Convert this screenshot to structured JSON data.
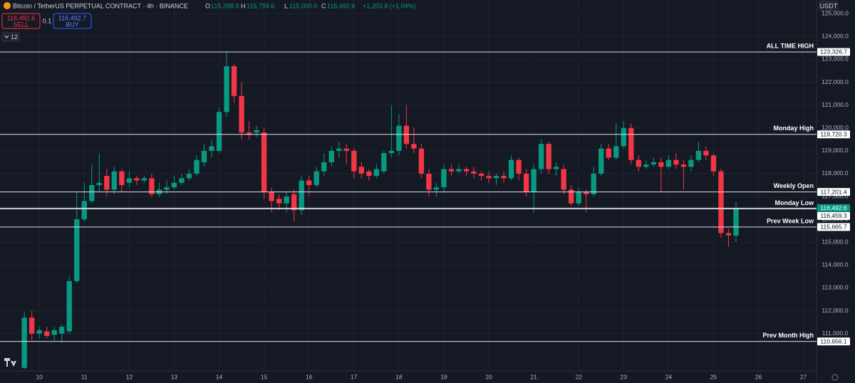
{
  "header": {
    "title": "Bitcoin / TetherUS PERPETUAL CONTRACT · 4h · BINANCE",
    "ohlc": [
      {
        "key": "O",
        "value": "115,288.9"
      },
      {
        "key": "H",
        "value": "116,759.6"
      },
      {
        "key": "L",
        "value": "115,000.0"
      },
      {
        "key": "C",
        "value": "116,492.6"
      }
    ],
    "change": "+1,203.8 (+1.04%)",
    "sell_price": "116,492.6",
    "sell": "SELL",
    "quantity": "0.1",
    "buy_price": "116,492.7",
    "buy": "BUY",
    "indicators": "12",
    "currency": "USDT"
  },
  "chart_data": {
    "type": "candlestick",
    "up_color": "#089981",
    "down_color": "#f23645",
    "grid": true,
    "x": [
      -8,
      -4,
      0,
      4,
      8,
      12,
      16,
      20,
      24,
      28,
      32,
      36,
      40,
      44,
      48,
      52,
      56,
      60,
      64,
      68,
      72,
      76,
      80,
      84,
      88,
      92,
      96,
      100,
      104,
      108,
      112,
      116,
      120,
      124,
      128,
      132,
      136,
      140,
      144,
      148,
      152,
      156,
      160,
      164,
      168,
      172,
      176,
      180,
      184,
      188,
      192,
      196,
      200,
      204,
      208,
      212,
      216,
      220,
      224,
      228,
      232,
      236,
      240,
      244,
      248,
      252,
      256,
      260,
      264,
      268,
      272,
      276,
      280,
      284,
      288,
      292,
      296,
      300,
      304,
      308,
      312,
      316,
      320,
      324,
      328,
      332,
      336,
      340,
      344,
      348,
      352,
      356,
      360,
      364,
      368,
      372
    ],
    "open": [
      109500,
      111700,
      111000,
      111100,
      110950,
      111000,
      111100,
      113300,
      116000,
      116800,
      117500,
      117900,
      117300,
      118100,
      117600,
      117800,
      117700,
      117800,
      117100,
      117300,
      117400,
      117600,
      117800,
      118000,
      118500,
      119000,
      119000,
      120700,
      122700,
      121400,
      119800,
      119800,
      119800,
      117200,
      116900,
      116700,
      117100,
      116400,
      117700,
      117500,
      118100,
      118500,
      119000,
      119100,
      119000,
      118300,
      118100,
      117900,
      118100,
      118900,
      119000,
      120100,
      119300,
      119100,
      118000,
      117300,
      117400,
      118200,
      118100,
      118200,
      118100,
      118000,
      117900,
      117800,
      117900,
      117800,
      118600,
      118000,
      117200,
      118200,
      119300,
      118200,
      118200,
      117300,
      116700,
      117200,
      117100,
      118000,
      119100,
      118700,
      119200,
      120000,
      118600,
      118300,
      118400,
      118500,
      118300,
      118600,
      118400,
      118300,
      118600,
      119000,
      118800,
      118100,
      115400,
      115288.9
    ],
    "high": [
      111950,
      112000,
      111300,
      111300,
      111300,
      111400,
      113500,
      117200,
      117600,
      118400,
      118900,
      118200,
      118300,
      118200,
      118100,
      117900,
      117900,
      118000,
      117600,
      117700,
      117900,
      118000,
      118200,
      118800,
      119300,
      119500,
      120900,
      123300,
      122800,
      122000,
      120300,
      120100,
      120000,
      117400,
      117100,
      117200,
      117300,
      117900,
      117900,
      118300,
      118900,
      119200,
      119400,
      119300,
      119100,
      118500,
      118200,
      118400,
      119000,
      121000,
      120600,
      121000,
      120000,
      119300,
      118200,
      117600,
      118400,
      118400,
      118400,
      118300,
      118300,
      118100,
      118100,
      118000,
      118100,
      118800,
      118700,
      118200,
      118400,
      119500,
      119400,
      118500,
      118400,
      117500,
      117400,
      117300,
      118300,
      119300,
      119300,
      120200,
      120300,
      120200,
      118800,
      118600,
      118700,
      118700,
      118800,
      118900,
      118600,
      118800,
      119400,
      119200,
      118900,
      118200,
      115600,
      116759.6
    ],
    "low": [
      109450,
      110700,
      110800,
      110800,
      110700,
      110600,
      111000,
      113200,
      115900,
      116700,
      117200,
      117000,
      117100,
      117200,
      117400,
      117500,
      117600,
      117000,
      117000,
      117100,
      117300,
      117500,
      117700,
      117900,
      118300,
      118700,
      118900,
      120500,
      121100,
      119500,
      119500,
      119600,
      116900,
      116300,
      116400,
      116300,
      115900,
      116200,
      117000,
      117400,
      117900,
      118300,
      118700,
      118400,
      117800,
      117800,
      117700,
      117800,
      118000,
      118700,
      118800,
      119100,
      118900,
      117800,
      117000,
      117000,
      117200,
      117900,
      118000,
      117900,
      117800,
      117700,
      117600,
      117500,
      117600,
      117700,
      117700,
      117000,
      116300,
      118000,
      118000,
      117900,
      117100,
      116600,
      116600,
      116300,
      117000,
      117900,
      118600,
      118600,
      119100,
      118400,
      118100,
      118200,
      118300,
      117200,
      118200,
      118200,
      117300,
      118100,
      118500,
      118600,
      117900,
      115200,
      114800,
      115000
    ],
    "close": [
      111700,
      111000,
      111150,
      110900,
      111150,
      111300,
      113300,
      116000,
      116800,
      117500,
      117600,
      117300,
      118100,
      117500,
      117800,
      117700,
      117800,
      117100,
      117300,
      117400,
      117600,
      117800,
      118000,
      118600,
      119000,
      119200,
      120700,
      122700,
      121400,
      119800,
      119700,
      119900,
      117200,
      116800,
      116700,
      117000,
      116400,
      117700,
      117500,
      118100,
      118500,
      119000,
      119100,
      119000,
      118100,
      118000,
      117900,
      118200,
      118900,
      119000,
      120100,
      119300,
      119100,
      118000,
      117300,
      117400,
      118200,
      118100,
      118200,
      118100,
      118000,
      117900,
      117800,
      117900,
      117800,
      118600,
      118000,
      117200,
      118200,
      119300,
      118200,
      118300,
      117300,
      116700,
      117200,
      117100,
      118000,
      119100,
      118700,
      119200,
      120000,
      118600,
      118300,
      118400,
      118500,
      118300,
      118600,
      118400,
      118300,
      118600,
      119000,
      118800,
      118100,
      115400,
      115300,
      116492.6
    ],
    "xlim": [
      -21,
      415
    ],
    "xticks": [
      {
        "value": 0,
        "label": "10"
      },
      {
        "value": 24,
        "label": "11"
      },
      {
        "value": 48,
        "label": "12"
      },
      {
        "value": 72,
        "label": "13"
      },
      {
        "value": 96,
        "label": "14"
      },
      {
        "value": 120,
        "label": "15"
      },
      {
        "value": 144,
        "label": "16"
      },
      {
        "value": 168,
        "label": "17"
      },
      {
        "value": 192,
        "label": "18"
      },
      {
        "value": 216,
        "label": "19"
      },
      {
        "value": 240,
        "label": "20"
      },
      {
        "value": 264,
        "label": "21"
      },
      {
        "value": 288,
        "label": "22"
      },
      {
        "value": 312,
        "label": "23"
      },
      {
        "value": 336,
        "label": "24"
      },
      {
        "value": 360,
        "label": "25"
      },
      {
        "value": 384,
        "label": "26"
      },
      {
        "value": 408,
        "label": "27"
      }
    ],
    "ylim": [
      109400,
      125600
    ],
    "yticks": [
      {
        "value": 111000,
        "label": "111,000.0"
      },
      {
        "value": 112000,
        "label": "112,000.0"
      },
      {
        "value": 113000,
        "label": "113,000.0"
      },
      {
        "value": 114000,
        "label": "114,000.0"
      },
      {
        "value": 115000,
        "label": "115,000.0"
      },
      {
        "value": 116000,
        "label": "116,000.0"
      },
      {
        "value": 117000,
        "label": "117,000.0"
      },
      {
        "value": 118000,
        "label": "118,000.0"
      },
      {
        "value": 119000,
        "label": "119,000.0"
      },
      {
        "value": 120000,
        "label": "120,000.0"
      },
      {
        "value": 121000,
        "label": "121,000.0"
      },
      {
        "value": 122000,
        "label": "122,000.0"
      },
      {
        "value": 123000,
        "label": "123,000.0"
      },
      {
        "value": 124000,
        "label": "124,000.0"
      },
      {
        "value": 125000,
        "label": "125,000.0"
      }
    ],
    "levels": [
      {
        "name": "ALL TIME HIGH",
        "value": 123326.7,
        "label": "123,326.7"
      },
      {
        "name": "Monday High",
        "value": 119720.3,
        "label": "119,720.3"
      },
      {
        "name": "Weekly Open",
        "value": 117201.4,
        "label": "117,201.4"
      },
      {
        "name": "Monday Low",
        "value": 116459.3,
        "label": "116,459.3"
      },
      {
        "name": "Prev Week Low",
        "value": 115665.7,
        "label": "115,665.7"
      },
      {
        "name": "Prev Month High",
        "value": 110656.1,
        "label": "110,656.1"
      }
    ],
    "last_price": {
      "value": 116492.6,
      "label": "116,492.6"
    }
  }
}
